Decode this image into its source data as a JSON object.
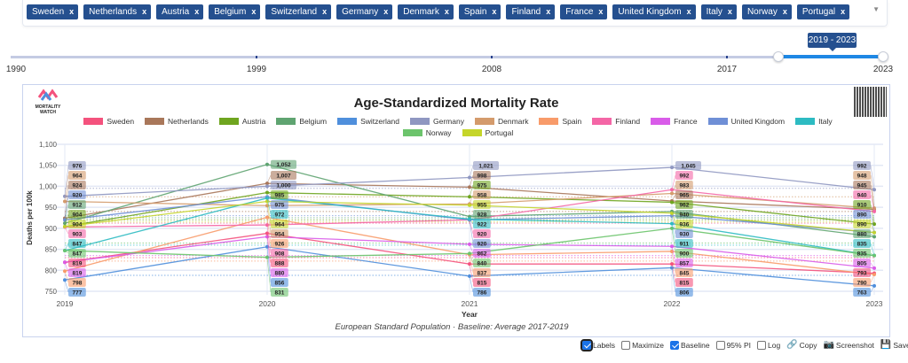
{
  "country_chips": [
    "Sweden",
    "Netherlands",
    "Austria",
    "Belgium",
    "Switzerland",
    "Germany",
    "Denmark",
    "Spain",
    "Finland",
    "France",
    "United Kingdom",
    "Italy",
    "Norway",
    "Portugal"
  ],
  "chip_remove": "x",
  "dropdown_icon": "▼",
  "slider": {
    "labels": [
      "1990",
      "1999",
      "2008",
      "2017",
      "2023"
    ],
    "tooltip": "2019 - 2023",
    "min": 1990,
    "max": 2023,
    "selected": [
      2019,
      2023
    ]
  },
  "chart": {
    "logo_text": "MORTALITY WATCH"
  },
  "footer": {
    "controls": [
      {
        "label": "Labels",
        "type": "checkbox",
        "checked": true
      },
      {
        "label": "Maximize",
        "type": "checkbox",
        "checked": false
      },
      {
        "label": "Baseline",
        "type": "checkbox",
        "checked": true
      },
      {
        "label": "95% PI",
        "type": "checkbox",
        "checked": false
      },
      {
        "label": "Log",
        "type": "checkbox",
        "checked": false
      },
      {
        "label": "Copy",
        "type": "button",
        "icon": "link-icon"
      },
      {
        "label": "Screenshot",
        "type": "button",
        "icon": "camera-icon"
      },
      {
        "label": "Save",
        "type": "button",
        "icon": "save-icon"
      }
    ]
  },
  "chart_data": {
    "type": "line",
    "title": "Age-Standardized Mortality Rate",
    "xlabel": "Year",
    "ylabel": "Deaths per 100k",
    "caption": "European Standard Population · Baseline: Average 2017-2019",
    "x": [
      "2019",
      "2020",
      "2021",
      "2022",
      "2023"
    ],
    "ylim": [
      750,
      1100
    ],
    "yticks": [
      "750",
      "800",
      "850",
      "900",
      "950",
      "1,000",
      "1,050",
      "1,100"
    ],
    "grid": true,
    "legend_position": "top",
    "series": [
      {
        "name": "Sweden",
        "color": "#f4527d",
        "values": [
          819,
          888,
          815,
          815,
          793
        ],
        "baseline": 830
      },
      {
        "name": "Netherlands",
        "color": "#a9775a",
        "values": [
          924,
          1007,
          998,
          965,
          945
        ],
        "baseline": 940
      },
      {
        "name": "Austria",
        "color": "#6fa51f",
        "values": [
          904,
          985,
          975,
          962,
          910
        ],
        "baseline": 920
      },
      {
        "name": "Belgium",
        "color": "#5fa471",
        "values": [
          912,
          1052,
          928,
          940,
          880
        ],
        "baseline": 925
      },
      {
        "name": "Switzerland",
        "color": "#4f8fdc",
        "values": [
          777,
          856,
          786,
          806,
          763
        ],
        "baseline": 788
      },
      {
        "name": "Germany",
        "color": "#8f97c1",
        "values": [
          976,
          1000,
          1021,
          1045,
          992
        ],
        "baseline": 995
      },
      {
        "name": "Denmark",
        "color": "#d49b6c",
        "values": [
          964,
          954,
          958,
          983,
          948
        ],
        "baseline": 975
      },
      {
        "name": "Spain",
        "color": "#f89b6a",
        "values": [
          798,
          926,
          837,
          845,
          790
        ],
        "baseline": 822
      },
      {
        "name": "Finland",
        "color": "#f466a6",
        "values": [
          903,
          908,
          920,
          992,
          940
        ],
        "baseline": 912
      },
      {
        "name": "France",
        "color": "#d95ce9",
        "values": [
          819,
          880,
          862,
          857,
          805
        ],
        "baseline": 835
      },
      {
        "name": "United Kingdom",
        "color": "#6f8fd6",
        "values": [
          920,
          975,
          920,
          930,
          890
        ],
        "baseline": 930
      },
      {
        "name": "Italy",
        "color": "#2dbbc2",
        "values": [
          847,
          972,
          922,
          911,
          835
        ],
        "baseline": 860
      },
      {
        "name": "Norway",
        "color": "#6cc46c",
        "values": [
          847,
          831,
          840,
          900,
          835
        ],
        "baseline": 865
      },
      {
        "name": "Portugal",
        "color": "#c5d52a",
        "values": [
          904,
          964,
          955,
          936,
          890
        ],
        "baseline": 915
      }
    ]
  }
}
